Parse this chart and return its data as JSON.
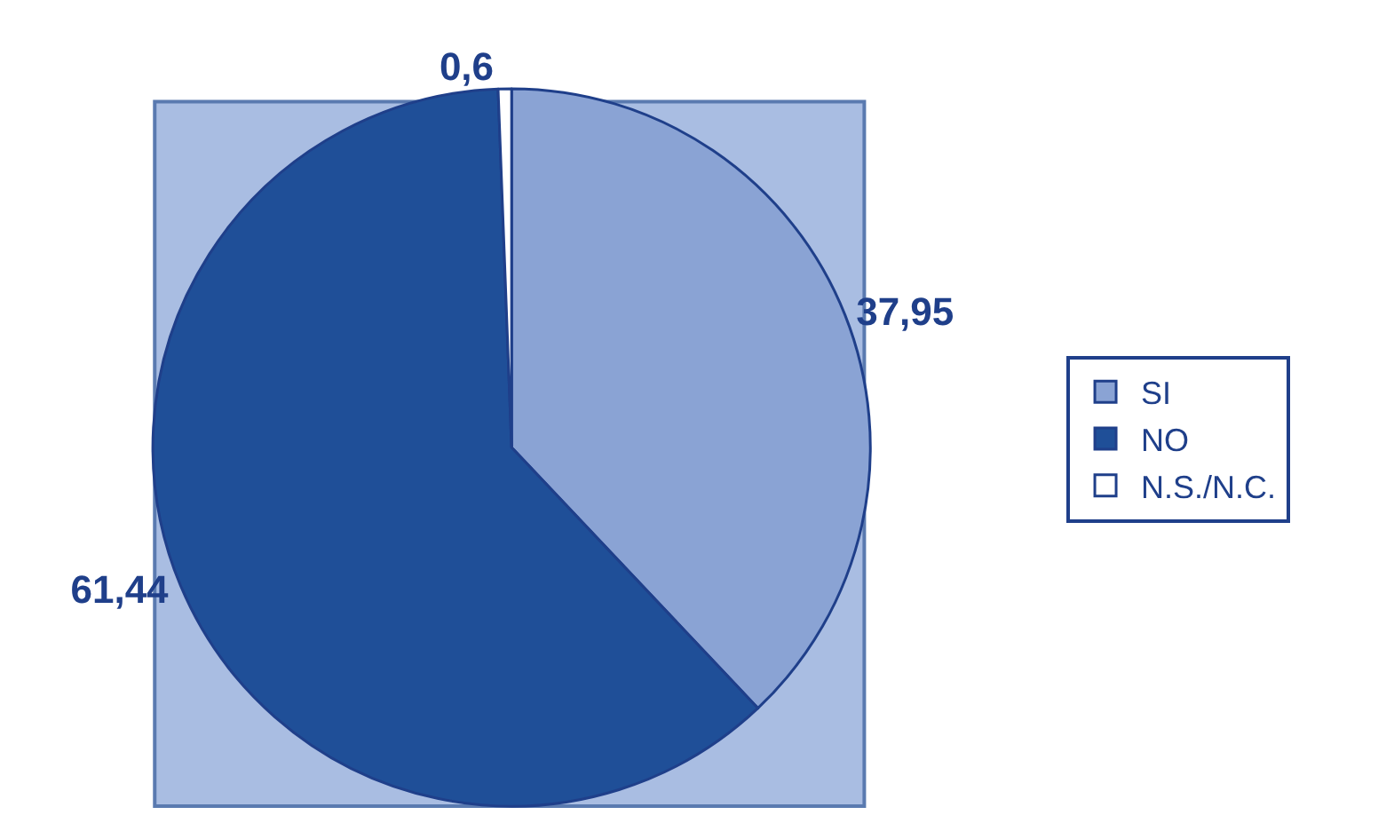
{
  "chart_data": {
    "type": "pie",
    "categories": [
      "SI",
      "NO",
      "N.S./N.C."
    ],
    "values": [
      37.95,
      61.44,
      0.6
    ],
    "value_labels": [
      "37,95",
      "61,44",
      "0,6"
    ],
    "colors": [
      "#8aa3d4",
      "#1f4f98",
      "#ffffff"
    ],
    "legend": "right"
  }
}
